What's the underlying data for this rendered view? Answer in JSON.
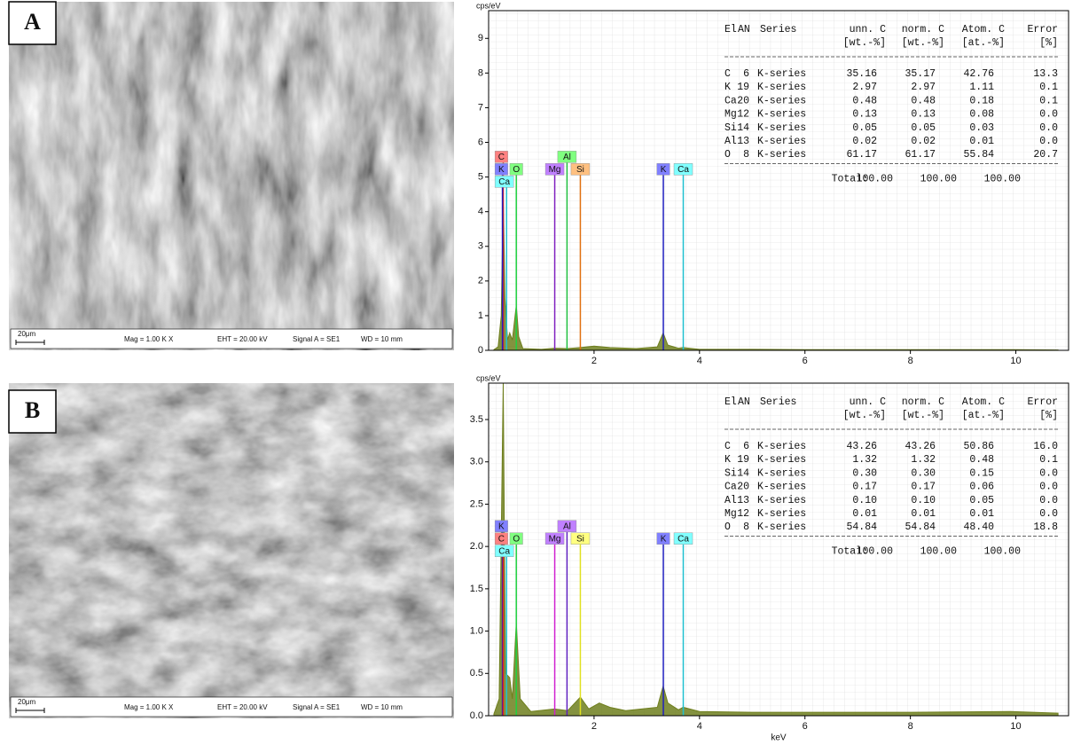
{
  "panels": [
    {
      "label": "A",
      "scale_bar": "20μm",
      "info": [
        "Mag = 1.00 K X",
        "EHT = 20.00 kV",
        "Signal A = SE1",
        "WD = 10 mm"
      ]
    },
    {
      "label": "B",
      "scale_bar": "20μm",
      "info": [
        "Mag = 1.00 K X",
        "EHT = 20.00 kV",
        "Signal A = SE1",
        "WD = 10 mm"
      ]
    }
  ],
  "chart_data": [
    {
      "type": "area",
      "y_label": "cps/eV",
      "xlim": [
        0,
        11
      ],
      "ylim": [
        0,
        9.8
      ],
      "xticks": [
        2,
        4,
        6,
        8,
        10
      ],
      "yticks": [
        0,
        1,
        2,
        3,
        4,
        5,
        6,
        7,
        8,
        9
      ],
      "grid": true,
      "color": "#6f7f1e",
      "x": [
        0.1,
        0.18,
        0.24,
        0.277,
        0.31,
        0.36,
        0.4,
        0.45,
        0.525,
        0.57,
        0.65,
        1.0,
        1.25,
        1.5,
        1.74,
        2.0,
        2.3,
        2.8,
        3.2,
        3.31,
        3.4,
        3.6,
        3.69,
        4.0,
        5,
        6,
        8,
        10,
        10.8
      ],
      "values": [
        0.02,
        0.1,
        1.0,
        4.5,
        1.5,
        0.3,
        0.5,
        0.3,
        1.3,
        0.4,
        0.05,
        0.03,
        0.06,
        0.05,
        0.08,
        0.12,
        0.08,
        0.05,
        0.1,
        0.5,
        0.15,
        0.06,
        0.08,
        0.03,
        0.03,
        0.02,
        0.02,
        0.02,
        0.01
      ],
      "element_markers": [
        {
          "label": "C",
          "energy": 0.277,
          "label_color": "#ff8080",
          "line_color": "#e02020"
        },
        {
          "label": "K",
          "energy": 0.262,
          "label_color": "#8080ff",
          "line_color": "#2020c0"
        },
        {
          "label": "Ca",
          "energy": 0.341,
          "label_color": "#80ffff",
          "line_color": "#20c0d0"
        },
        {
          "label": "O",
          "energy": 0.525,
          "label_color": "#80ff80",
          "line_color": "#20d040"
        },
        {
          "label": "Mg",
          "energy": 1.254,
          "label_color": "#c080ff",
          "line_color": "#8020c0"
        },
        {
          "label": "Al",
          "energy": 1.487,
          "label_color": "#80ff80",
          "line_color": "#20c040"
        },
        {
          "label": "Si",
          "energy": 1.74,
          "label_color": "#ffc080",
          "line_color": "#e07010"
        },
        {
          "label": "K",
          "energy": 3.314,
          "label_color": "#8080ff",
          "line_color": "#2020c0"
        },
        {
          "label": "Ca",
          "energy": 3.692,
          "label_color": "#80ffff",
          "line_color": "#20c0d0"
        }
      ],
      "table": {
        "columns": [
          "El",
          "AN",
          "Series",
          "unn. C",
          "norm. C",
          "Atom. C",
          "Error"
        ],
        "units": [
          "[wt.-%]",
          "[wt.-%]",
          "[at.-%]",
          "[%]"
        ],
        "rows": [
          [
            "C",
            "6",
            "K-series",
            "35.16",
            "35.17",
            "42.76",
            "13.3"
          ],
          [
            "K",
            "19",
            "K-series",
            "2.97",
            "2.97",
            "1.11",
            "0.1"
          ],
          [
            "Ca",
            "20",
            "K-series",
            "0.48",
            "0.48",
            "0.18",
            "0.1"
          ],
          [
            "Mg",
            "12",
            "K-series",
            "0.13",
            "0.13",
            "0.08",
            "0.0"
          ],
          [
            "Si",
            "14",
            "K-series",
            "0.05",
            "0.05",
            "0.03",
            "0.0"
          ],
          [
            "Al",
            "13",
            "K-series",
            "0.02",
            "0.02",
            "0.01",
            "0.0"
          ],
          [
            "O",
            "8",
            "K-series",
            "61.17",
            "61.17",
            "55.84",
            "20.7"
          ]
        ],
        "total_label": "Total:",
        "totals": [
          "100.00",
          "100.00",
          "100.00"
        ]
      }
    },
    {
      "type": "area",
      "y_label": "cps/eV",
      "x_label": "keV",
      "xlim": [
        0,
        11
      ],
      "ylim": [
        0,
        3.93
      ],
      "xticks": [
        2,
        4,
        6,
        8,
        10
      ],
      "yticks": [
        {
          "value": 0,
          "label": "0.0"
        },
        0.5,
        {
          "value": 1,
          "label": "1.0"
        },
        1.5,
        {
          "value": 2,
          "label": "2.0"
        },
        2.5,
        {
          "value": 3,
          "label": "3.0"
        },
        3.5
      ],
      "grid": true,
      "color": "#6f7f1e",
      "x": [
        0.1,
        0.2,
        0.277,
        0.32,
        0.4,
        0.45,
        0.525,
        0.6,
        0.8,
        1.25,
        1.5,
        1.74,
        1.9,
        2.1,
        2.3,
        2.6,
        2.9,
        3.2,
        3.31,
        3.4,
        3.6,
        3.69,
        4.0,
        5,
        6,
        8,
        9.9,
        10.8
      ],
      "values": [
        0.02,
        0.2,
        3.93,
        0.5,
        0.45,
        0.2,
        1.1,
        0.2,
        0.05,
        0.08,
        0.06,
        0.22,
        0.08,
        0.15,
        0.1,
        0.06,
        0.08,
        0.1,
        0.35,
        0.15,
        0.07,
        0.1,
        0.05,
        0.04,
        0.04,
        0.04,
        0.05,
        0.03
      ],
      "element_markers": [
        {
          "label": "K",
          "energy": 0.262,
          "label_color": "#8080ff",
          "line_color": "#2020c0"
        },
        {
          "label": "C",
          "energy": 0.277,
          "label_color": "#ff8080",
          "line_color": "#e02020"
        },
        {
          "label": "Ca",
          "energy": 0.341,
          "label_color": "#80ffff",
          "line_color": "#20c0d0"
        },
        {
          "label": "O",
          "energy": 0.525,
          "label_color": "#80ff80",
          "line_color": "#20d040"
        },
        {
          "label": "Mg",
          "energy": 1.254,
          "label_color": "#c080ff",
          "line_color": "#d020d0"
        },
        {
          "label": "Al",
          "energy": 1.487,
          "label_color": "#c080ff",
          "line_color": "#6020c0"
        },
        {
          "label": "Si",
          "energy": 1.74,
          "label_color": "#ffff80",
          "line_color": "#e0e020"
        },
        {
          "label": "K",
          "energy": 3.314,
          "label_color": "#8080ff",
          "line_color": "#2020c0"
        },
        {
          "label": "Ca",
          "energy": 3.692,
          "label_color": "#80ffff",
          "line_color": "#20c0d0"
        }
      ],
      "table": {
        "columns": [
          "El",
          "AN",
          "Series",
          "unn. C",
          "norm. C",
          "Atom. C",
          "Error"
        ],
        "units": [
          "[wt.-%]",
          "[wt.-%]",
          "[at.-%]",
          "[%]"
        ],
        "rows": [
          [
            "C",
            "6",
            "K-series",
            "43.26",
            "43.26",
            "50.86",
            "16.0"
          ],
          [
            "K",
            "19",
            "K-series",
            "1.32",
            "1.32",
            "0.48",
            "0.1"
          ],
          [
            "Si",
            "14",
            "K-series",
            "0.30",
            "0.30",
            "0.15",
            "0.0"
          ],
          [
            "Ca",
            "20",
            "K-series",
            "0.17",
            "0.17",
            "0.06",
            "0.0"
          ],
          [
            "Al",
            "13",
            "K-series",
            "0.10",
            "0.10",
            "0.05",
            "0.0"
          ],
          [
            "Mg",
            "12",
            "K-series",
            "0.01",
            "0.01",
            "0.01",
            "0.0"
          ],
          [
            "O",
            "8",
            "K-series",
            "54.84",
            "54.84",
            "48.40",
            "18.8"
          ]
        ],
        "total_label": "Total:",
        "totals": [
          "100.00",
          "100.00",
          "100.00"
        ]
      }
    }
  ]
}
